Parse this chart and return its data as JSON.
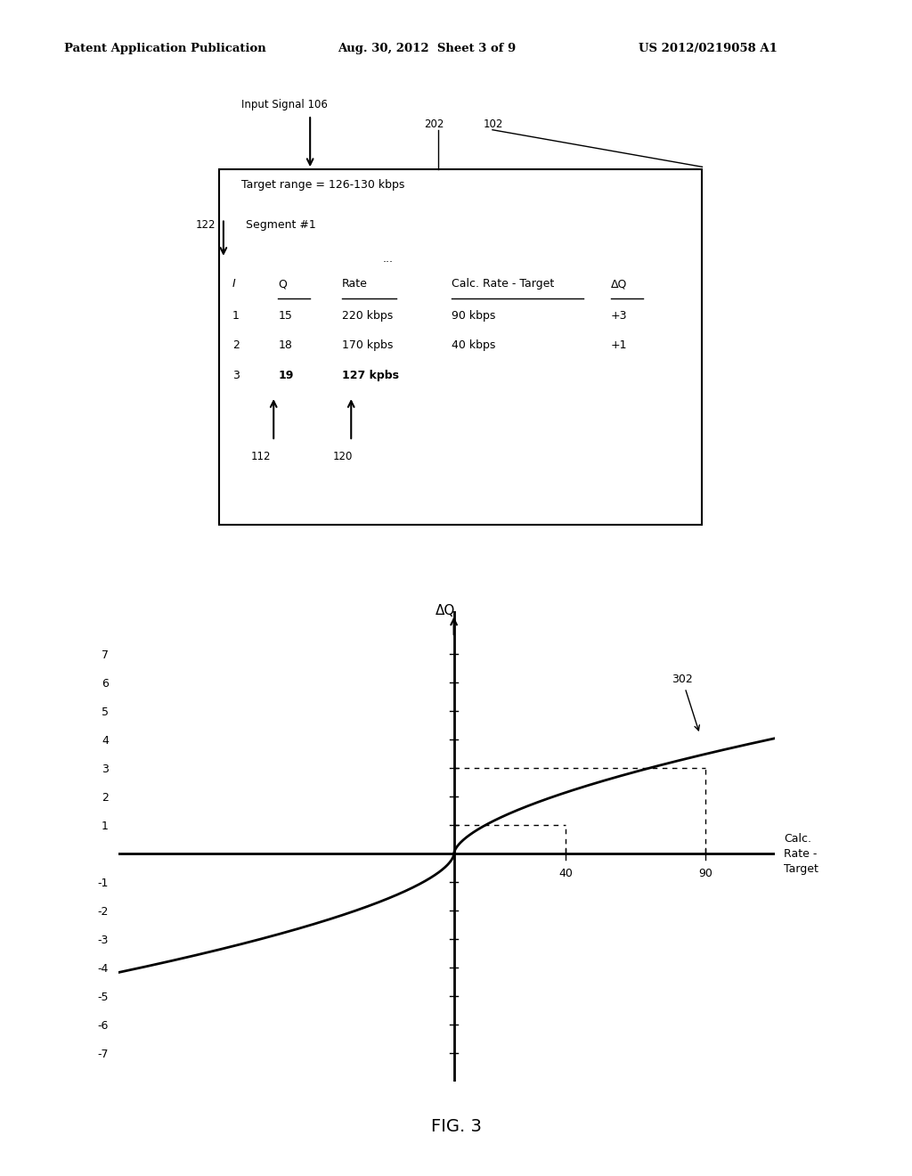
{
  "header_left": "Patent Application Publication",
  "header_mid": "Aug. 30, 2012  Sheet 3 of 9",
  "header_right": "US 2012/0219058 A1",
  "box_title": "Target range = 126-130 kbps",
  "segment_label": "Segment #1",
  "segment_label_num": "122",
  "ellipsis": "...",
  "table_headers": [
    "I",
    "Q",
    "Rate",
    "Calc. Rate - Target",
    "ΔQ"
  ],
  "table_rows": [
    [
      "1",
      "15",
      "220 kbps",
      "90 kbps",
      "+3"
    ],
    [
      "2",
      "18",
      "170 kpbs",
      "40 kbps",
      "+1"
    ],
    [
      "3",
      "19",
      "127 kpbs",
      "",
      ""
    ]
  ],
  "arrow_112_label": "112",
  "arrow_120_label": "120",
  "input_signal_label": "Input Signal 106",
  "box_label_202": "202",
  "box_label_102": "102",
  "curve_label": "302",
  "ylabel": "ΔQ",
  "xlabel_line1": "Calc.",
  "xlabel_line2": "Rate -",
  "xlabel_line3": "Target",
  "yticks": [
    -7,
    -6,
    -5,
    -4,
    -3,
    -2,
    -1,
    1,
    2,
    3,
    4,
    5,
    6,
    7
  ],
  "dashed_points": [
    [
      40,
      1
    ],
    [
      90,
      3
    ]
  ],
  "fig3_label": "FIG. 3",
  "background_color": "#ffffff",
  "text_color": "#000000"
}
